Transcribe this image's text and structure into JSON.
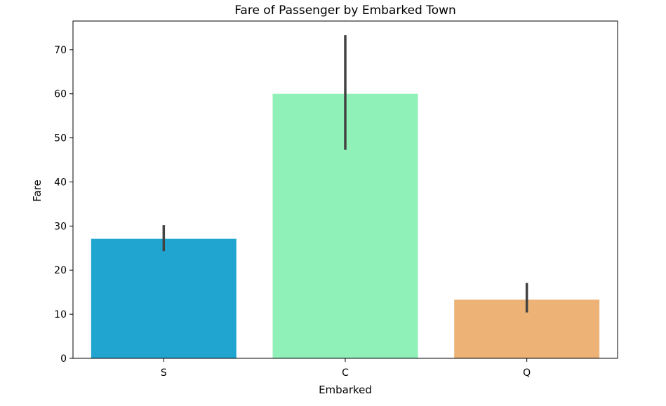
{
  "chart_data": {
    "type": "bar",
    "title": "Fare of Passenger by Embarked Town",
    "xlabel": "Embarked",
    "ylabel": "Fare",
    "categories": [
      "S",
      "C",
      "Q"
    ],
    "values": [
      27.1,
      60.0,
      13.3
    ],
    "error_bars": [
      {
        "low": 24.3,
        "high": 30.2
      },
      {
        "low": 47.3,
        "high": 73.3
      },
      {
        "low": 10.4,
        "high": 17.1
      }
    ],
    "ylim": [
      0,
      76.5
    ],
    "yticks": [
      0,
      10,
      20,
      30,
      40,
      50,
      60,
      70
    ],
    "bar_colors": [
      "#1fa5d0",
      "#8ff0b8",
      "#edb276"
    ],
    "error_bar_color": "#424242",
    "grid": false,
    "legend": "none"
  }
}
